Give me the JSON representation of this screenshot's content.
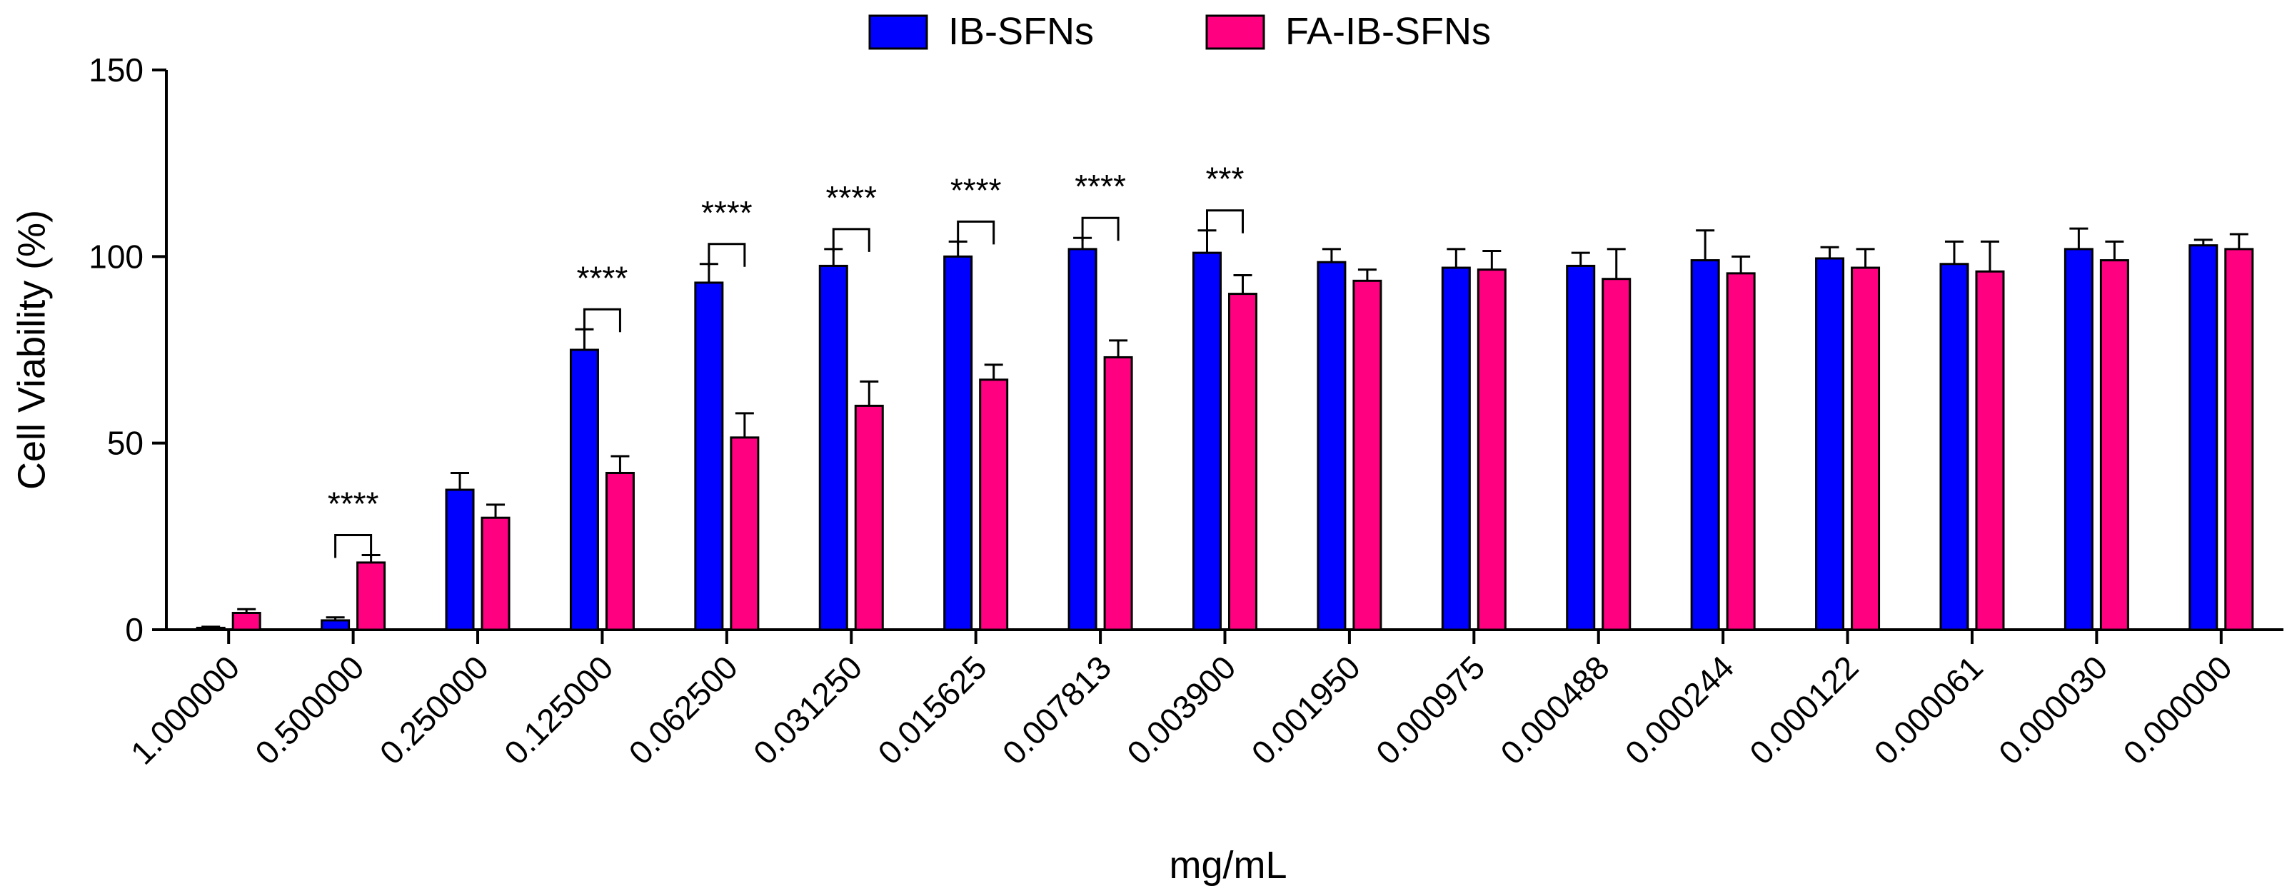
{
  "chart_data": {
    "type": "bar",
    "title": "",
    "xlabel": "mg/mL",
    "ylabel": "Cell Viability (%)",
    "ylim": [
      0,
      150
    ],
    "yticks": [
      0,
      50,
      100,
      150
    ],
    "legend_position": "top-center",
    "categories": [
      "1.000000",
      "0.500000",
      "0.250000",
      "0.125000",
      "0.062500",
      "0.031250",
      "0.015625",
      "0.007813",
      "0.003900",
      "0.001950",
      "0.000975",
      "0.000488",
      "0.000244",
      "0.000122",
      "0.000061",
      "0.000030",
      "0.000000"
    ],
    "series": [
      {
        "name": "IB-SFNs",
        "color": "#0000ff",
        "values": [
          0.5,
          2.5,
          37.5,
          75,
          93,
          97.5,
          100,
          102,
          101,
          98.5,
          97,
          97.5,
          99,
          99.5,
          98,
          102,
          103
        ],
        "errors": [
          0.3,
          0.8,
          4.5,
          5.5,
          5,
          4.5,
          4,
          3,
          6,
          3.5,
          5,
          3.5,
          8,
          3,
          6,
          5.5,
          1.5
        ]
      },
      {
        "name": "FA-IB-SFNs",
        "color": "#ff0080",
        "values": [
          4.5,
          18,
          30,
          42,
          51.5,
          60,
          67,
          73,
          90,
          93.5,
          96.5,
          94,
          95.5,
          97,
          96,
          99,
          102
        ],
        "errors": [
          1,
          2,
          3.5,
          4.5,
          6.5,
          6.5,
          4,
          4.5,
          5,
          3,
          5,
          8,
          4.5,
          5,
          8,
          5,
          4
        ]
      }
    ],
    "annotations": [
      {
        "category_index": 1,
        "label": "****"
      },
      {
        "category_index": 3,
        "label": "****"
      },
      {
        "category_index": 4,
        "label": "****"
      },
      {
        "category_index": 5,
        "label": "****"
      },
      {
        "category_index": 6,
        "label": "****"
      },
      {
        "category_index": 7,
        "label": "****"
      },
      {
        "category_index": 8,
        "label": "***"
      }
    ]
  }
}
